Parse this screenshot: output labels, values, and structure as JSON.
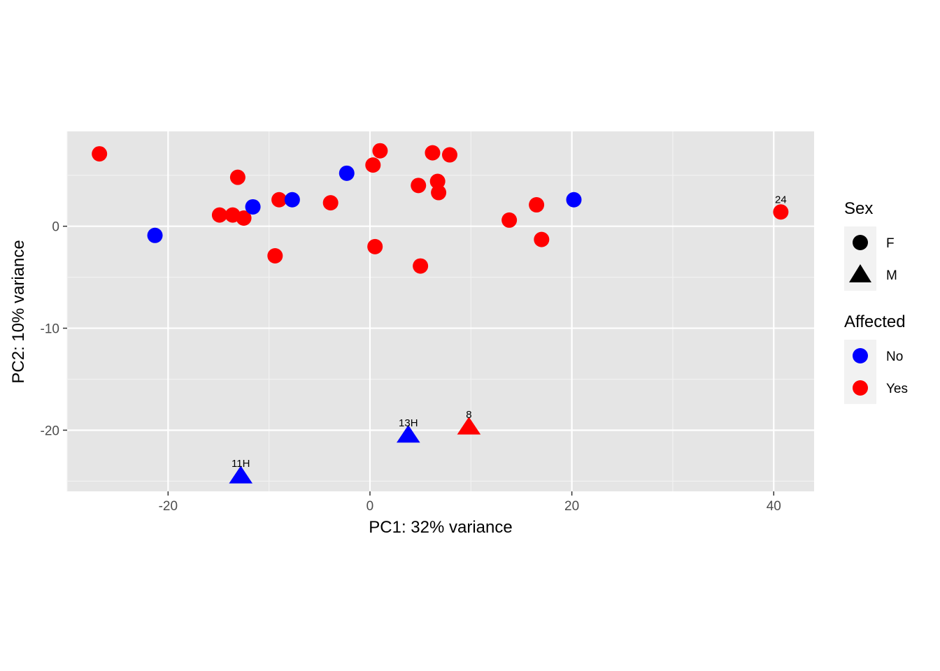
{
  "chart_data": {
    "type": "scatter",
    "xlabel": "PC1: 32% variance",
    "ylabel": "PC2: 10% variance",
    "xlim": [
      -30,
      44
    ],
    "ylim": [
      -26,
      9.3
    ],
    "x_ticks": [
      -20,
      0,
      20,
      40
    ],
    "x_tick_labels": [
      "-20",
      "0",
      "20",
      "40"
    ],
    "y_ticks": [
      -20,
      -10,
      0
    ],
    "y_tick_labels": [
      "-20",
      "-10",
      "0"
    ],
    "grid": true,
    "background": "#e5e5e5",
    "legend_position": "right",
    "legends": [
      {
        "title": "Sex",
        "key": "shape",
        "entries": [
          {
            "label": "F",
            "shape": "circle"
          },
          {
            "label": "M",
            "shape": "triangle"
          }
        ]
      },
      {
        "title": "Affected",
        "key": "color",
        "entries": [
          {
            "label": "No",
            "color": "#0000ff"
          },
          {
            "label": "Yes",
            "color": "#ff0000"
          }
        ]
      }
    ],
    "points": [
      {
        "x": -26.8,
        "y": 7.1,
        "sex": "F",
        "affected": "Yes",
        "label": ""
      },
      {
        "x": -21.3,
        "y": -0.9,
        "sex": "F",
        "affected": "No",
        "label": ""
      },
      {
        "x": -13.1,
        "y": 4.8,
        "sex": "F",
        "affected": "Yes",
        "label": ""
      },
      {
        "x": -14.9,
        "y": 1.1,
        "sex": "F",
        "affected": "Yes",
        "label": ""
      },
      {
        "x": -13.6,
        "y": 1.1,
        "sex": "F",
        "affected": "Yes",
        "label": ""
      },
      {
        "x": -12.5,
        "y": 0.8,
        "sex": "F",
        "affected": "Yes",
        "label": ""
      },
      {
        "x": -11.6,
        "y": 1.9,
        "sex": "F",
        "affected": "No",
        "label": ""
      },
      {
        "x": -9.0,
        "y": 2.6,
        "sex": "F",
        "affected": "Yes",
        "label": ""
      },
      {
        "x": -7.7,
        "y": 2.6,
        "sex": "F",
        "affected": "No",
        "label": ""
      },
      {
        "x": -9.4,
        "y": -2.9,
        "sex": "F",
        "affected": "Yes",
        "label": ""
      },
      {
        "x": -3.9,
        "y": 2.3,
        "sex": "F",
        "affected": "Yes",
        "label": ""
      },
      {
        "x": -2.3,
        "y": 5.2,
        "sex": "F",
        "affected": "No",
        "label": ""
      },
      {
        "x": 0.3,
        "y": 6.0,
        "sex": "F",
        "affected": "Yes",
        "label": ""
      },
      {
        "x": 1.0,
        "y": 7.4,
        "sex": "F",
        "affected": "Yes",
        "label": ""
      },
      {
        "x": 0.5,
        "y": -2.0,
        "sex": "F",
        "affected": "Yes",
        "label": ""
      },
      {
        "x": 4.8,
        "y": 4.0,
        "sex": "F",
        "affected": "Yes",
        "label": ""
      },
      {
        "x": 5.0,
        "y": -3.9,
        "sex": "F",
        "affected": "Yes",
        "label": ""
      },
      {
        "x": 6.2,
        "y": 7.2,
        "sex": "F",
        "affected": "Yes",
        "label": ""
      },
      {
        "x": 6.7,
        "y": 4.4,
        "sex": "F",
        "affected": "Yes",
        "label": ""
      },
      {
        "x": 6.8,
        "y": 3.3,
        "sex": "F",
        "affected": "Yes",
        "label": ""
      },
      {
        "x": 7.9,
        "y": 7.0,
        "sex": "F",
        "affected": "Yes",
        "label": ""
      },
      {
        "x": 13.8,
        "y": 0.6,
        "sex": "F",
        "affected": "Yes",
        "label": ""
      },
      {
        "x": 16.5,
        "y": 2.1,
        "sex": "F",
        "affected": "Yes",
        "label": ""
      },
      {
        "x": 17.0,
        "y": -1.3,
        "sex": "F",
        "affected": "Yes",
        "label": ""
      },
      {
        "x": 20.2,
        "y": 2.6,
        "sex": "F",
        "affected": "No",
        "label": ""
      },
      {
        "x": 40.7,
        "y": 1.4,
        "sex": "F",
        "affected": "Yes",
        "label": "24"
      },
      {
        "x": -12.8,
        "y": -24.5,
        "sex": "M",
        "affected": "No",
        "label": "11H"
      },
      {
        "x": 3.8,
        "y": -20.5,
        "sex": "M",
        "affected": "No",
        "label": "13H"
      },
      {
        "x": 9.8,
        "y": -19.7,
        "sex": "M",
        "affected": "Yes",
        "label": "8"
      }
    ]
  }
}
